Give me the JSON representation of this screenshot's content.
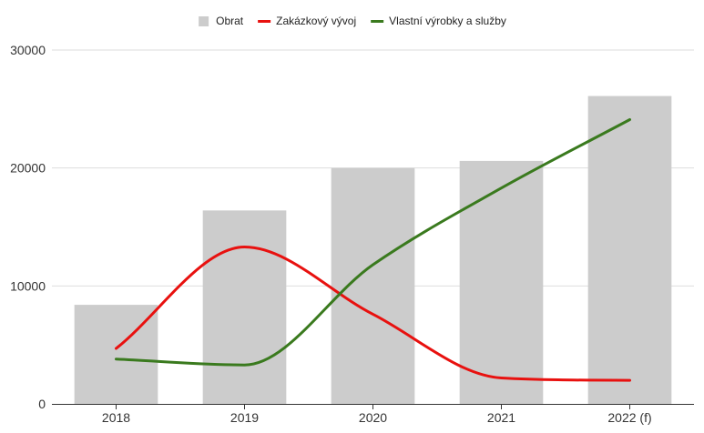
{
  "chart_data": {
    "type": "bar",
    "categories": [
      "2018",
      "2019",
      "2020",
      "2021",
      "2022 (f)"
    ],
    "series": [
      {
        "name": "Obrat",
        "type": "bar",
        "color": "#cccccc",
        "values": [
          8400,
          16400,
          20000,
          20600,
          26100
        ]
      },
      {
        "name": "Zakázkový vývoj",
        "type": "line",
        "color": "#e8110f",
        "values": [
          4700,
          13300,
          7600,
          2200,
          2000
        ]
      },
      {
        "name": "Vlastní výrobky a služby",
        "type": "line",
        "color": "#3a7a1e",
        "values": [
          3800,
          3300,
          11800,
          18300,
          24100
        ]
      }
    ],
    "yticks": [
      "0",
      "10000",
      "20000",
      "30000"
    ],
    "ylim": [
      0,
      30000
    ],
    "grid": true,
    "legend_position": "top-center",
    "title": "",
    "xlabel": "",
    "ylabel": ""
  }
}
